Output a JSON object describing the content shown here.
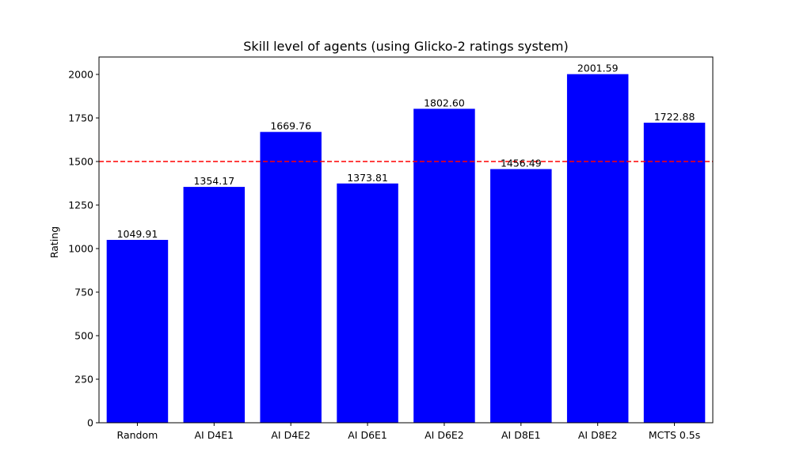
{
  "chart_data": {
    "type": "bar",
    "title": "Skill level of agents (using Glicko-2 ratings system)",
    "xlabel": "",
    "ylabel": "Rating",
    "categories": [
      "Random",
      "AI D4E1",
      "AI D4E2",
      "AI D6E1",
      "AI D6E2",
      "AI D8E1",
      "AI D8E2",
      "MCTS 0.5s"
    ],
    "values": [
      1049.91,
      1354.17,
      1669.76,
      1373.81,
      1802.6,
      1456.49,
      2001.59,
      1722.88
    ],
    "value_labels": [
      "1049.91",
      "1354.17",
      "1669.76",
      "1373.81",
      "1802.60",
      "1456.49",
      "2001.59",
      "1722.88"
    ],
    "ylim": [
      0,
      2100
    ],
    "yticks": [
      0,
      250,
      500,
      750,
      1000,
      1250,
      1500,
      1750,
      2000
    ],
    "reference_line": {
      "y": 1500,
      "style": "dashed",
      "color": "#ff0000"
    },
    "bar_color": "#0000ff",
    "grid": false
  }
}
